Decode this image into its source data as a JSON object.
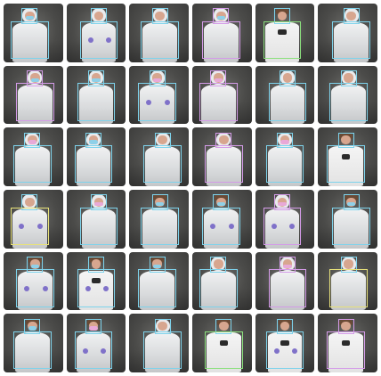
{
  "grid": {
    "rows": 6,
    "cols": 6,
    "tiles": [
      {
        "subject": "hood",
        "suit": "coverall",
        "mask": "blue",
        "gloves": false,
        "logo": false,
        "box": "blue"
      },
      {
        "subject": "hood",
        "suit": "coverall",
        "mask": "none",
        "gloves": true,
        "logo": false,
        "box": "blue"
      },
      {
        "subject": "hood",
        "suit": "coverall",
        "mask": "none",
        "gloves": false,
        "logo": false,
        "box": "blue"
      },
      {
        "subject": "hood",
        "suit": "coverall",
        "mask": "blue",
        "gloves": false,
        "logo": false,
        "box": "pink"
      },
      {
        "subject": "face",
        "suit": "shirt",
        "mask": "none",
        "gloves": false,
        "logo": true,
        "box": "green"
      },
      {
        "subject": "hood",
        "suit": "coverall",
        "mask": "none",
        "gloves": false,
        "logo": false,
        "box": "blue"
      },
      {
        "subject": "hood",
        "suit": "coverall",
        "mask": "blue",
        "gloves": false,
        "logo": false,
        "box": "pink"
      },
      {
        "subject": "hood",
        "suit": "coverall",
        "mask": "blue",
        "gloves": false,
        "logo": false,
        "box": "blue"
      },
      {
        "subject": "hood",
        "suit": "coverall",
        "mask": "pink",
        "gloves": true,
        "logo": false,
        "box": "blue"
      },
      {
        "subject": "hood",
        "suit": "coverall",
        "mask": "pink",
        "gloves": false,
        "logo": false,
        "box": "pink"
      },
      {
        "subject": "hood",
        "suit": "coverall",
        "mask": "none",
        "gloves": false,
        "logo": false,
        "box": "blue"
      },
      {
        "subject": "hood",
        "suit": "coverall",
        "mask": "none",
        "gloves": false,
        "logo": false,
        "box": "blue"
      },
      {
        "subject": "hood",
        "suit": "coverall",
        "mask": "pink",
        "gloves": false,
        "logo": false,
        "box": "blue"
      },
      {
        "subject": "hood",
        "suit": "coverall",
        "mask": "blue",
        "gloves": false,
        "logo": false,
        "box": "blue"
      },
      {
        "subject": "hood",
        "suit": "coverall",
        "mask": "none",
        "gloves": false,
        "logo": false,
        "box": "blue"
      },
      {
        "subject": "hood",
        "suit": "coverall",
        "mask": "none",
        "gloves": false,
        "logo": false,
        "box": "pink"
      },
      {
        "subject": "hood",
        "suit": "coverall",
        "mask": "pink",
        "gloves": false,
        "logo": false,
        "box": "blue"
      },
      {
        "subject": "face",
        "suit": "shirt",
        "mask": "none",
        "gloves": false,
        "logo": true,
        "box": "blue"
      },
      {
        "subject": "hood",
        "suit": "coverall",
        "mask": "none",
        "gloves": true,
        "logo": false,
        "box": "yellow"
      },
      {
        "subject": "hood",
        "suit": "coverall",
        "mask": "pink",
        "gloves": false,
        "logo": false,
        "box": "blue"
      },
      {
        "subject": "face",
        "suit": "coverall",
        "mask": "blue",
        "gloves": false,
        "logo": false,
        "box": "blue"
      },
      {
        "subject": "face",
        "suit": "coverall",
        "mask": "blue",
        "gloves": true,
        "logo": false,
        "box": "blue"
      },
      {
        "subject": "hood",
        "suit": "coverall",
        "mask": "pink",
        "gloves": true,
        "logo": false,
        "box": "pink"
      },
      {
        "subject": "face",
        "suit": "coverall",
        "mask": "blue",
        "gloves": false,
        "logo": false,
        "box": "blue"
      },
      {
        "subject": "face",
        "suit": "coverall",
        "mask": "blue",
        "gloves": true,
        "logo": false,
        "box": "blue"
      },
      {
        "subject": "face",
        "suit": "shirt",
        "mask": "none",
        "gloves": true,
        "logo": true,
        "box": "blue"
      },
      {
        "subject": "face",
        "suit": "coverall",
        "mask": "blue",
        "gloves": false,
        "logo": false,
        "box": "blue"
      },
      {
        "subject": "hood",
        "suit": "coverall",
        "mask": "none",
        "gloves": false,
        "logo": false,
        "box": "blue"
      },
      {
        "subject": "hood",
        "suit": "coverall",
        "mask": "pink",
        "gloves": false,
        "logo": false,
        "box": "pink"
      },
      {
        "subject": "hood",
        "suit": "coverall",
        "mask": "none",
        "gloves": false,
        "logo": false,
        "box": "yellow"
      },
      {
        "subject": "face",
        "suit": "coverall",
        "mask": "blue",
        "gloves": false,
        "logo": false,
        "box": "blue"
      },
      {
        "subject": "face",
        "suit": "coverall",
        "mask": "pink",
        "gloves": true,
        "logo": false,
        "box": "blue"
      },
      {
        "subject": "hood",
        "suit": "coverall",
        "mask": "none",
        "gloves": false,
        "logo": false,
        "box": "blue"
      },
      {
        "subject": "face",
        "suit": "shirt",
        "mask": "none",
        "gloves": false,
        "logo": true,
        "box": "green"
      },
      {
        "subject": "face",
        "suit": "shirt",
        "mask": "none",
        "gloves": true,
        "logo": true,
        "box": "blue"
      },
      {
        "subject": "face",
        "suit": "shirt",
        "mask": "none",
        "gloves": false,
        "logo": true,
        "box": "pink"
      }
    ]
  }
}
